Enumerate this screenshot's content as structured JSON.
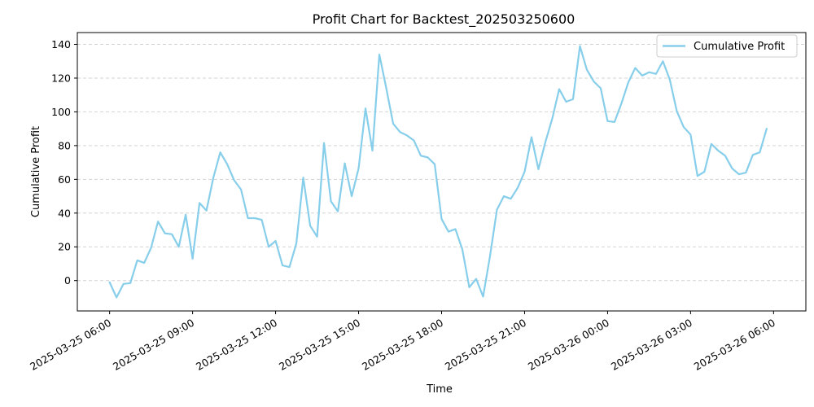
{
  "chart_data": {
    "type": "line",
    "title": "Profit Chart for Backtest_202503250600",
    "xlabel": "Time",
    "ylabel": "Cumulative Profit",
    "ylim": [
      -18,
      147
    ],
    "xlim": [
      "2025-03-25 04:50",
      "2025-03-26 07:10"
    ],
    "grid": {
      "y": true,
      "x": false,
      "style": "dashed"
    },
    "legend": {
      "location": "top-right",
      "entries": [
        "Cumulative Profit"
      ]
    },
    "xticks": [
      {
        "value": "2025-03-25 06:00",
        "label": "2025-03-25 06:00"
      },
      {
        "value": "2025-03-25 09:00",
        "label": "2025-03-25 09:00"
      },
      {
        "value": "2025-03-25 12:00",
        "label": "2025-03-25 12:00"
      },
      {
        "value": "2025-03-25 15:00",
        "label": "2025-03-25 15:00"
      },
      {
        "value": "2025-03-25 18:00",
        "label": "2025-03-25 18:00"
      },
      {
        "value": "2025-03-25 21:00",
        "label": "2025-03-25 21:00"
      },
      {
        "value": "2025-03-26 00:00",
        "label": "2025-03-26 00:00"
      },
      {
        "value": "2025-03-26 03:00",
        "label": "2025-03-26 03:00"
      },
      {
        "value": "2025-03-26 06:00",
        "label": "2025-03-26 06:00"
      }
    ],
    "yticks": [
      0,
      20,
      40,
      60,
      80,
      100,
      120,
      140
    ],
    "series": [
      {
        "name": "Cumulative Profit",
        "color": "#87CEEB",
        "x": [
          "2025-03-25 06:00",
          "2025-03-25 06:15",
          "2025-03-25 06:30",
          "2025-03-25 06:45",
          "2025-03-25 07:00",
          "2025-03-25 07:15",
          "2025-03-25 07:30",
          "2025-03-25 07:45",
          "2025-03-25 08:00",
          "2025-03-25 08:15",
          "2025-03-25 08:30",
          "2025-03-25 08:45",
          "2025-03-25 09:00",
          "2025-03-25 09:15",
          "2025-03-25 09:30",
          "2025-03-25 09:45",
          "2025-03-25 10:00",
          "2025-03-25 10:15",
          "2025-03-25 10:30",
          "2025-03-25 10:45",
          "2025-03-25 11:00",
          "2025-03-25 11:15",
          "2025-03-25 11:30",
          "2025-03-25 11:45",
          "2025-03-25 12:00",
          "2025-03-25 12:15",
          "2025-03-25 12:30",
          "2025-03-25 12:45",
          "2025-03-25 13:00",
          "2025-03-25 13:15",
          "2025-03-25 13:30",
          "2025-03-25 13:45",
          "2025-03-25 14:00",
          "2025-03-25 14:15",
          "2025-03-25 14:30",
          "2025-03-25 14:45",
          "2025-03-25 15:00",
          "2025-03-25 15:15",
          "2025-03-25 15:30",
          "2025-03-25 15:45",
          "2025-03-25 16:00",
          "2025-03-25 16:15",
          "2025-03-25 16:30",
          "2025-03-25 16:45",
          "2025-03-25 17:00",
          "2025-03-25 17:15",
          "2025-03-25 17:30",
          "2025-03-25 17:45",
          "2025-03-25 18:00",
          "2025-03-25 18:15",
          "2025-03-25 18:30",
          "2025-03-25 18:45",
          "2025-03-25 19:00",
          "2025-03-25 19:15",
          "2025-03-25 19:30",
          "2025-03-25 19:45",
          "2025-03-25 20:00",
          "2025-03-25 20:15",
          "2025-03-25 20:30",
          "2025-03-25 20:45",
          "2025-03-25 21:00",
          "2025-03-25 21:15",
          "2025-03-25 21:30",
          "2025-03-25 21:45",
          "2025-03-25 22:00",
          "2025-03-25 22:15",
          "2025-03-25 22:30",
          "2025-03-25 22:45",
          "2025-03-25 23:00",
          "2025-03-25 23:15",
          "2025-03-25 23:30",
          "2025-03-25 23:45",
          "2025-03-26 00:00",
          "2025-03-26 00:15",
          "2025-03-26 00:30",
          "2025-03-26 00:45",
          "2025-03-26 01:00",
          "2025-03-26 01:15",
          "2025-03-26 01:30",
          "2025-03-26 01:45",
          "2025-03-26 02:00",
          "2025-03-26 02:15",
          "2025-03-26 02:30",
          "2025-03-26 02:45",
          "2025-03-26 03:00",
          "2025-03-26 03:15",
          "2025-03-26 03:30",
          "2025-03-26 03:45",
          "2025-03-26 04:00",
          "2025-03-26 04:15",
          "2025-03-26 04:30",
          "2025-03-26 04:45",
          "2025-03-26 05:00",
          "2025-03-26 05:15",
          "2025-03-26 05:30",
          "2025-03-26 05:45"
        ],
        "values": [
          -1,
          -10,
          -2,
          -1.5,
          12,
          10.5,
          19.5,
          35,
          28,
          27.5,
          20,
          39,
          13,
          46,
          41.5,
          61,
          76,
          69,
          59.5,
          54,
          37,
          37,
          36,
          20,
          23.5,
          9,
          8,
          22,
          61,
          32.5,
          26,
          81.5,
          47,
          41,
          69.5,
          50,
          66.5,
          102,
          77,
          134,
          114,
          93,
          88,
          86,
          83,
          74,
          73,
          69,
          36.5,
          29,
          30.5,
          18.5,
          -4,
          1,
          -9.5,
          14.5,
          42,
          50,
          48.5,
          55,
          64.5,
          85,
          66,
          82,
          96,
          113.5,
          106,
          107.5,
          139,
          125,
          118,
          114,
          94.5,
          94,
          105,
          117.5,
          126,
          121.5,
          123.5,
          122.5,
          130,
          119,
          100.5,
          91,
          86.5,
          62,
          64.5,
          81,
          77,
          74,
          66.5,
          63,
          64,
          74.5,
          76,
          90
        ]
      }
    ]
  }
}
